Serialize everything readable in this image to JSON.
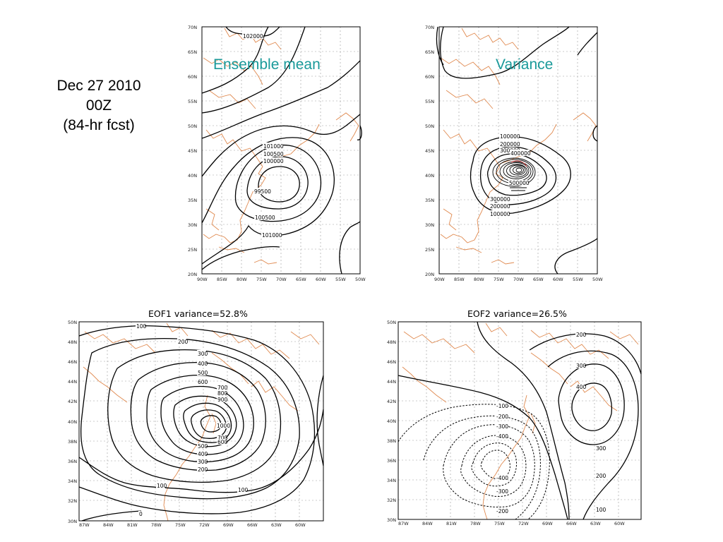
{
  "caption": {
    "date": "Dec 27 2010",
    "hour": "00Z",
    "forecast": "(84-hr fcst)"
  },
  "maps": {
    "ensemble_mean": {
      "title": "Ensemble mean",
      "lat_ticks": [
        "70N",
        "65N",
        "60N",
        "55N",
        "50N",
        "45N",
        "40N",
        "35N",
        "30N",
        "25N",
        "20N"
      ],
      "lon_ticks": [
        "90W",
        "85W",
        "80W",
        "75W",
        "70W",
        "65W",
        "60W",
        "55W",
        "50W"
      ],
      "contour_labels": [
        "102000",
        "101000",
        "100500",
        "100000",
        "99500",
        "100500",
        "101000"
      ]
    },
    "variance": {
      "title": "Variance",
      "lat_ticks": [
        "70N",
        "65N",
        "60N",
        "55N",
        "50N",
        "45N",
        "40N",
        "35N",
        "30N",
        "25N",
        "20N"
      ],
      "lon_ticks": [
        "90W",
        "85W",
        "80W",
        "75W",
        "70W",
        "65W",
        "60W",
        "55W",
        "50W"
      ],
      "contour_labels": [
        "100000",
        "200000",
        "300000",
        "400000",
        "500000",
        "300000",
        "200000",
        "100000"
      ]
    },
    "eof1": {
      "title": "EOF1   variance=52.8%",
      "lat_ticks": [
        "50N",
        "48N",
        "46N",
        "44N",
        "42N",
        "40N",
        "38N",
        "36N",
        "34N",
        "32N",
        "30N"
      ],
      "lon_ticks": [
        "87W",
        "84W",
        "81W",
        "78W",
        "75W",
        "72W",
        "69W",
        "66W",
        "63W",
        "60W"
      ],
      "contour_labels": [
        "100",
        "200",
        "300",
        "400",
        "500",
        "600",
        "700",
        "800",
        "900",
        "1000",
        "700",
        "600",
        "500",
        "400",
        "300",
        "200",
        "100",
        "100",
        "0"
      ]
    },
    "eof2": {
      "title": "EOF2   variance=26.5%",
      "lat_ticks": [
        "50N",
        "48N",
        "46N",
        "44N",
        "42N",
        "40N",
        "38N",
        "36N",
        "34N",
        "32N",
        "30N"
      ],
      "lon_ticks": [
        "87W",
        "84W",
        "81W",
        "78W",
        "75W",
        "72W",
        "69W",
        "66W",
        "63W",
        "60W"
      ],
      "contour_labels": [
        "200",
        "300",
        "400",
        "300",
        "200",
        "100",
        "-100",
        "-200",
        "-300",
        "-400",
        "-400",
        "-300",
        "-200"
      ]
    }
  },
  "colors": {
    "coastline": "#e08a50",
    "contour": "#000000",
    "overlay_title": "#1a9a9a"
  }
}
